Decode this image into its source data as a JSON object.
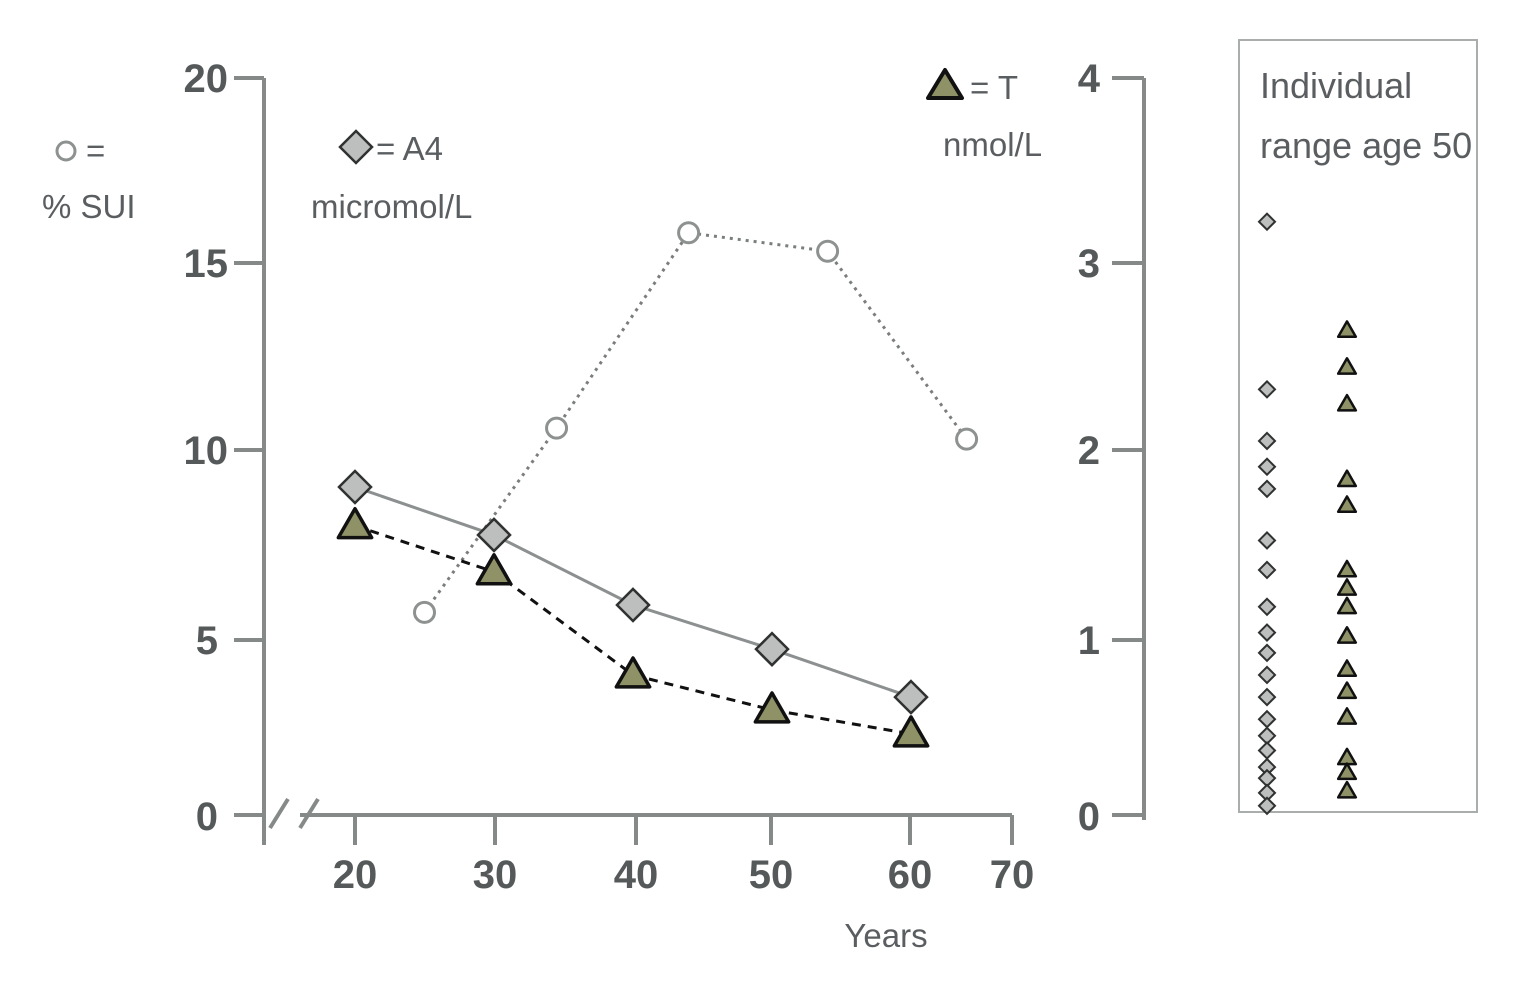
{
  "chart_data": {
    "type": "line",
    "xlabel": "Years",
    "x_ticks": [
      "20",
      "30",
      "40",
      "50",
      "60",
      "70"
    ],
    "xlim": [
      13.5,
      70
    ],
    "left_axis": {
      "ticks": [
        "0",
        "5",
        "10",
        "15",
        "20"
      ],
      "ylim": [
        0,
        20
      ]
    },
    "right_axis": {
      "ticks": [
        "0",
        "1",
        "2",
        "3",
        "4"
      ],
      "ylim": [
        0,
        4
      ]
    },
    "legend": {
      "sui": {
        "line1": "=",
        "line2": "% SUI"
      },
      "a4": {
        "line1": "= A4",
        "line2": "micromol/L"
      },
      "t": {
        "line1": "= T",
        "line2": "nmol/L"
      }
    },
    "series": [
      {
        "key": "sui",
        "axis": "left",
        "marker": "circle",
        "line": "dotted",
        "color": "#7a7e7c",
        "x": [
          25,
          34.5,
          44,
          54,
          64
        ],
        "y": [
          5.5,
          10.5,
          15.8,
          15.3,
          10.2
        ]
      },
      {
        "key": "a4",
        "axis": "left",
        "marker": "diamond",
        "line": "solid",
        "color": "#8c9090",
        "x": [
          20,
          30,
          40,
          50,
          60
        ],
        "y": [
          8.9,
          7.6,
          5.7,
          4.5,
          3.2
        ]
      },
      {
        "key": "t",
        "axis": "right",
        "marker": "triangle",
        "line": "dashed",
        "color": "#111111",
        "x": [
          20,
          30,
          40,
          50,
          60
        ],
        "y": [
          1.57,
          1.32,
          0.76,
          0.57,
          0.44
        ]
      }
    ],
    "individual_range": {
      "title_line1": "Individual",
      "title_line2": "range age 50",
      "axis": "right",
      "a4_values": [
        3.22,
        2.31,
        2.03,
        1.89,
        1.77,
        1.49,
        1.33,
        1.13,
        0.99,
        0.88,
        0.76,
        0.64,
        0.52,
        0.43,
        0.35,
        0.26,
        0.2,
        0.12,
        0.05
      ],
      "t_values": [
        2.63,
        2.43,
        2.23,
        1.82,
        1.68,
        1.33,
        1.23,
        1.13,
        0.97,
        0.79,
        0.67,
        0.53,
        0.31,
        0.23,
        0.13
      ]
    },
    "colors": {
      "axis": "#858a88",
      "diamond_fill": "#bdbfbe",
      "triangle_fill": "#8e9266",
      "circle_stroke": "#8d9190"
    }
  }
}
